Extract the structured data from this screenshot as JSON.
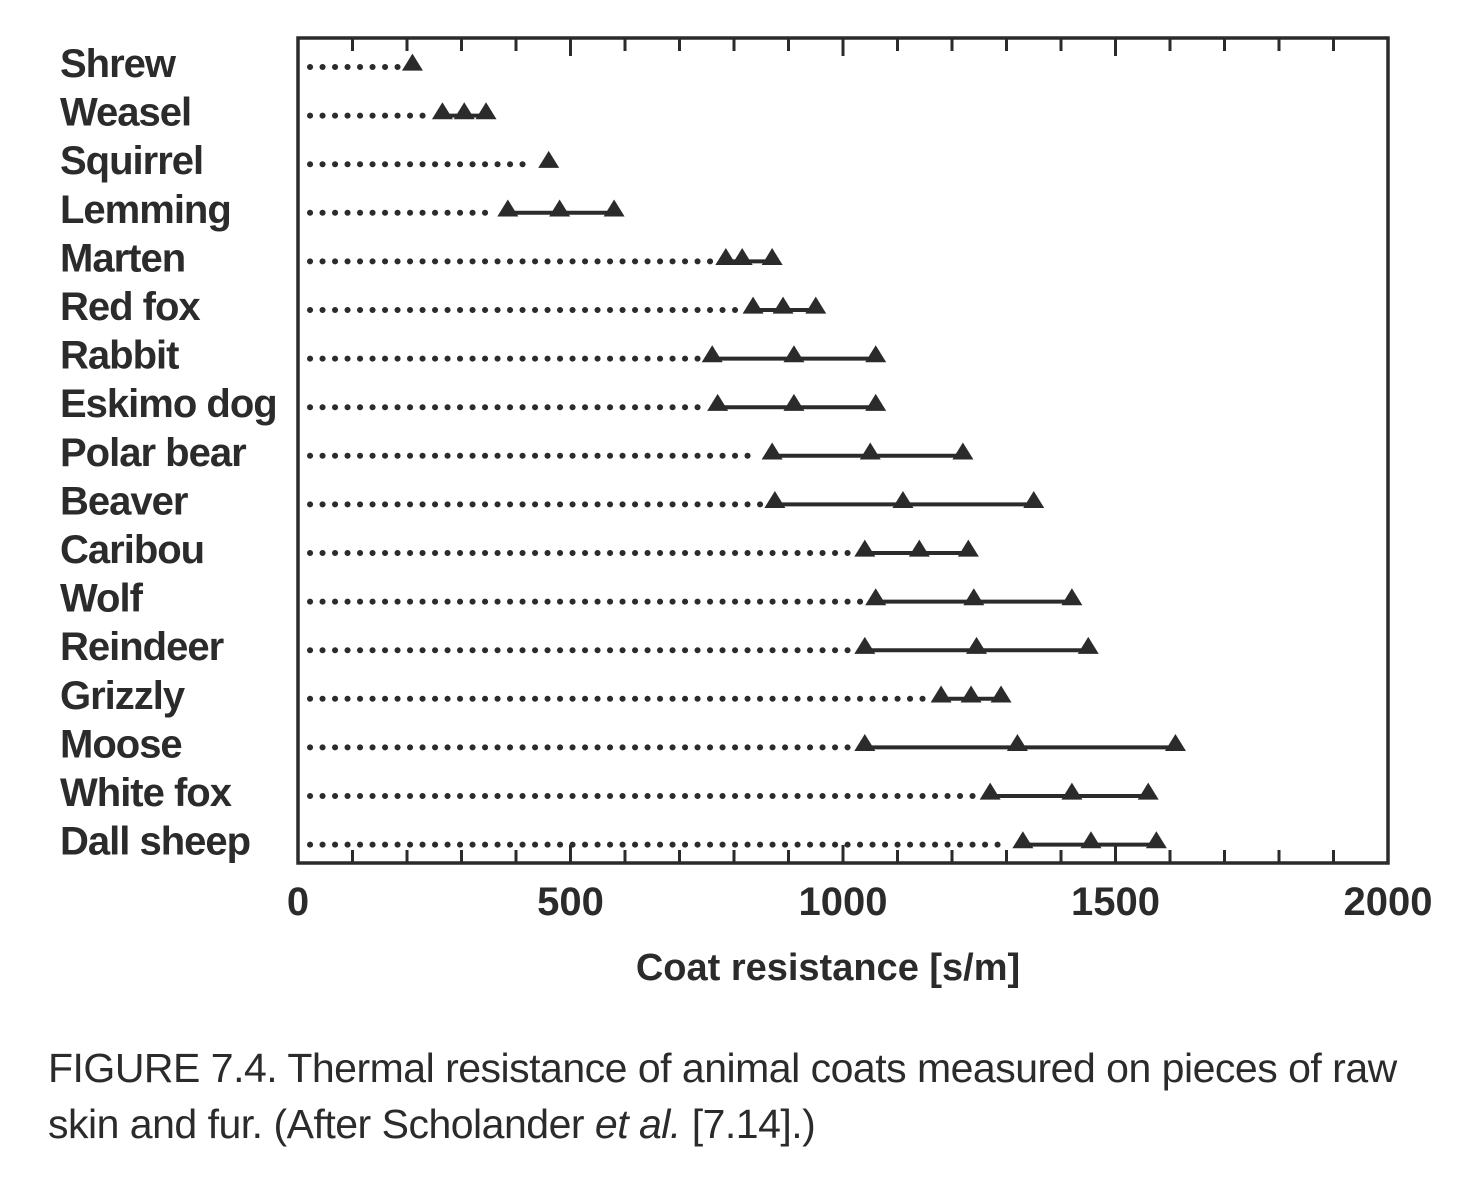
{
  "chart_data": {
    "type": "dot-range",
    "xlabel": "Coat resistance [s/m]",
    "xlim": [
      0,
      2000
    ],
    "xticks": [
      0,
      500,
      1000,
      1500,
      2000
    ],
    "xtick_labels": [
      "0",
      "500",
      "1000",
      "1500",
      "2000"
    ],
    "grid": false,
    "categories": [
      "Shrew",
      "Weasel",
      "Squirrel",
      "Lemming",
      "Marten",
      "Red fox",
      "Rabbit",
      "Eskimo dog",
      "Polar bear",
      "Beaver",
      "Caribou",
      "Wolf",
      "Reindeer",
      "Grizzly",
      "Moose",
      "White fox",
      "Dall sheep"
    ],
    "ranges": [
      {
        "name": "Shrew",
        "low": 210,
        "mid": 210,
        "high": 210
      },
      {
        "name": "Weasel",
        "low": 265,
        "mid": 305,
        "high": 345
      },
      {
        "name": "Squirrel",
        "low": 460,
        "mid": 460,
        "high": 460
      },
      {
        "name": "Lemming",
        "low": 385,
        "mid": 480,
        "high": 580
      },
      {
        "name": "Marten",
        "low": 785,
        "mid": 815,
        "high": 870
      },
      {
        "name": "Red fox",
        "low": 835,
        "mid": 890,
        "high": 950
      },
      {
        "name": "Rabbit",
        "low": 760,
        "mid": 910,
        "high": 1060
      },
      {
        "name": "Eskimo dog",
        "low": 770,
        "mid": 910,
        "high": 1060
      },
      {
        "name": "Polar bear",
        "low": 870,
        "mid": 1050,
        "high": 1220
      },
      {
        "name": "Beaver",
        "low": 875,
        "mid": 1110,
        "high": 1350
      },
      {
        "name": "Caribou",
        "low": 1040,
        "mid": 1140,
        "high": 1230
      },
      {
        "name": "Wolf",
        "low": 1060,
        "mid": 1240,
        "high": 1420
      },
      {
        "name": "Reindeer",
        "low": 1040,
        "mid": 1245,
        "high": 1450
      },
      {
        "name": "Grizzly",
        "low": 1180,
        "mid": 1235,
        "high": 1290
      },
      {
        "name": "Moose",
        "low": 1040,
        "mid": 1320,
        "high": 1610
      },
      {
        "name": "White fox",
        "low": 1270,
        "mid": 1420,
        "high": 1560
      },
      {
        "name": "Dall sheep",
        "low": 1330,
        "mid": 1455,
        "high": 1575
      }
    ]
  },
  "caption": {
    "prefix": "FIGURE 7.4. Thermal resistance of animal coats measured on pieces of raw skin and fur. (After Scholander ",
    "italic": "et al.",
    "suffix": " [7.14].)"
  },
  "colors": {
    "ink": "#2b2b2b",
    "background": "#ffffff"
  }
}
